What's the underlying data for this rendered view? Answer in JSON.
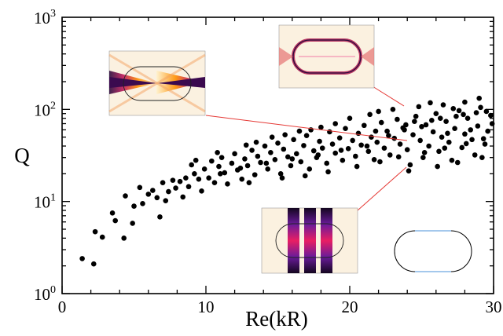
{
  "chart_data": {
    "type": "scatter",
    "title": "",
    "xlabel": "Re(kR)",
    "ylabel": "Q",
    "xlim": [
      0,
      30
    ],
    "ylim": [
      1,
      1000
    ],
    "yscale": "log",
    "grid": false,
    "legend": "none",
    "x_ticks": [
      "0",
      "10",
      "20",
      "30"
    ],
    "y_ticks": [
      {
        "base": "10",
        "exp": "0"
      },
      {
        "base": "10",
        "exp": "1"
      },
      {
        "base": "10",
        "exp": "2"
      },
      {
        "base": "10",
        "exp": "3"
      }
    ],
    "marker_color": "#000000",
    "annotation_color": "#e53935",
    "insets": [
      {
        "name": "inset-mode-bowtie",
        "points_to": [
          24.2,
          48
        ]
      },
      {
        "name": "inset-mode-whispering-gallery",
        "points_to": [
          24.2,
          97
        ]
      },
      {
        "name": "inset-mode-bouncing-ball",
        "points_to": [
          24.2,
          25
        ]
      },
      {
        "name": "inset-stadium-shape"
      }
    ],
    "points": [
      [
        1.4,
        2.4
      ],
      [
        2.2,
        2.1
      ],
      [
        2.3,
        4.7
      ],
      [
        2.8,
        4.1
      ],
      [
        3.5,
        7.5
      ],
      [
        3.7,
        6.2
      ],
      [
        4.3,
        4.0
      ],
      [
        4.4,
        11.5
      ],
      [
        4.9,
        5.8
      ],
      [
        5.0,
        8.9
      ],
      [
        5.4,
        14.2
      ],
      [
        5.6,
        9.5
      ],
      [
        6.0,
        12.0
      ],
      [
        6.3,
        13.2
      ],
      [
        6.6,
        11.0
      ],
      [
        6.8,
        6.8
      ],
      [
        7.0,
        16.0
      ],
      [
        7.2,
        10.2
      ],
      [
        7.4,
        12.8
      ],
      [
        7.7,
        17.0
      ],
      [
        7.9,
        14.0
      ],
      [
        8.2,
        16.5
      ],
      [
        8.4,
        11.2
      ],
      [
        8.6,
        18.0
      ],
      [
        8.8,
        14.5
      ],
      [
        9.0,
        25.0
      ],
      [
        9.2,
        20.0
      ],
      [
        9.5,
        17.5
      ],
      [
        9.7,
        13.0
      ],
      [
        9.9,
        22.5
      ],
      [
        10.2,
        18.0
      ],
      [
        10.4,
        27.5
      ],
      [
        10.6,
        16.0
      ],
      [
        10.9,
        24.0
      ],
      [
        11.1,
        30.0
      ],
      [
        11.3,
        20.5
      ],
      [
        11.5,
        15.5
      ],
      [
        11.8,
        26.0
      ],
      [
        12.0,
        33.0
      ],
      [
        12.2,
        22.0
      ],
      [
        12.5,
        17.5
      ],
      [
        12.7,
        29.0
      ],
      [
        12.9,
        24.5
      ],
      [
        13.2,
        36.0
      ],
      [
        13.4,
        19.5
      ],
      [
        13.6,
        31.0
      ],
      [
        13.8,
        26.5
      ],
      [
        14.1,
        40.0
      ],
      [
        14.3,
        22.5
      ],
      [
        14.5,
        34.0
      ],
      [
        14.8,
        28.5
      ],
      [
        15.0,
        43.0
      ],
      [
        15.2,
        20.0
      ],
      [
        15.4,
        37.0
      ],
      [
        15.7,
        30.5
      ],
      [
        15.9,
        24.5
      ],
      [
        16.1,
        47.0
      ],
      [
        16.3,
        33.0
      ],
      [
        16.6,
        27.0
      ],
      [
        16.8,
        40.5
      ],
      [
        17.0,
        52.0
      ],
      [
        17.2,
        22.5
      ],
      [
        17.5,
        35.5
      ],
      [
        17.7,
        30.0
      ],
      [
        17.9,
        45.0
      ],
      [
        18.1,
        38.0
      ],
      [
        18.4,
        26.0
      ],
      [
        18.6,
        57.0
      ],
      [
        18.8,
        42.0
      ],
      [
        19.0,
        33.5
      ],
      [
        19.3,
        49.0
      ],
      [
        19.5,
        28.0
      ],
      [
        19.7,
        62.0
      ],
      [
        19.9,
        37.5
      ],
      [
        20.2,
        46.0
      ],
      [
        20.4,
        31.0
      ],
      [
        20.6,
        55.0
      ],
      [
        20.8,
        41.0
      ],
      [
        21.0,
        67.0
      ],
      [
        21.3,
        35.0
      ],
      [
        21.5,
        50.0
      ],
      [
        21.7,
        28.5
      ],
      [
        21.9,
        44.0
      ],
      [
        22.2,
        72.0
      ],
      [
        22.4,
        38.0
      ],
      [
        22.6,
        58.0
      ],
      [
        22.8,
        32.0
      ],
      [
        23.1,
        48.5
      ],
      [
        23.3,
        78.0
      ],
      [
        23.5,
        42.0
      ],
      [
        23.7,
        63.0
      ],
      [
        24.0,
        36.5
      ],
      [
        24.2,
        25.0
      ],
      [
        24.4,
        53.0
      ],
      [
        24.6,
        84.0
      ],
      [
        24.9,
        46.0
      ],
      [
        25.1,
        30.0
      ],
      [
        25.3,
        68.0
      ],
      [
        25.5,
        40.0
      ],
      [
        25.8,
        57.0
      ],
      [
        26.0,
        90.0
      ],
      [
        26.2,
        35.0
      ],
      [
        26.4,
        50.0
      ],
      [
        26.7,
        74.0
      ],
      [
        26.9,
        44.0
      ],
      [
        27.1,
        28.0
      ],
      [
        27.3,
        62.0
      ],
      [
        27.6,
        97.0
      ],
      [
        27.8,
        38.5
      ],
      [
        28.0,
        54.0
      ],
      [
        28.2,
        80.0
      ],
      [
        28.5,
        47.0
      ],
      [
        28.7,
        32.0
      ],
      [
        28.9,
        66.0
      ],
      [
        29.1,
        105.0
      ],
      [
        29.4,
        42.0
      ],
      [
        29.6,
        58.0
      ],
      [
        29.8,
        86.0
      ],
      [
        22.0,
        95.0
      ],
      [
        23.0,
        100.0
      ],
      [
        24.8,
        107.0
      ],
      [
        26.5,
        112.0
      ],
      [
        28.0,
        120.0
      ],
      [
        29.0,
        132.0
      ],
      [
        25.6,
        118.0
      ],
      [
        27.2,
        102.0
      ],
      [
        18.0,
        64.0
      ],
      [
        16.5,
        58.0
      ],
      [
        14.6,
        50.0
      ],
      [
        12.8,
        41.0
      ],
      [
        10.8,
        34.0
      ],
      [
        9.3,
        28.0
      ],
      [
        20.0,
        80.0
      ],
      [
        21.4,
        88.0
      ],
      [
        19.0,
        70.0
      ],
      [
        17.3,
        60.0
      ],
      [
        15.5,
        53.0
      ],
      [
        13.5,
        44.0
      ],
      [
        23.8,
        60.0
      ],
      [
        25.0,
        65.0
      ],
      [
        26.8,
        55.0
      ],
      [
        28.4,
        60.0
      ],
      [
        29.9,
        70.0
      ],
      [
        22.7,
        52.0
      ],
      [
        24.5,
        74.0
      ],
      [
        26.3,
        80.0
      ],
      [
        27.9,
        88.0
      ],
      [
        29.5,
        95.0
      ],
      [
        21.2,
        40.0
      ],
      [
        19.4,
        36.0
      ],
      [
        17.8,
        32.0
      ],
      [
        16.0,
        29.0
      ],
      [
        14.2,
        26.0
      ],
      [
        12.4,
        23.0
      ],
      [
        11.0,
        20.0
      ],
      [
        23.4,
        30.5
      ],
      [
        25.2,
        34.0
      ],
      [
        26.6,
        38.0
      ],
      [
        28.1,
        42.5
      ],
      [
        29.3,
        48.0
      ],
      [
        20.5,
        24.0
      ],
      [
        22.1,
        27.0
      ],
      [
        24.1,
        21.5
      ],
      [
        26.1,
        24.0
      ],
      [
        27.5,
        26.5
      ],
      [
        29.2,
        30.0
      ],
      [
        18.5,
        21.0
      ],
      [
        16.9,
        19.0
      ],
      [
        15.3,
        18.0
      ],
      [
        13.0,
        16.0
      ],
      [
        21.8,
        58.0
      ],
      [
        23.9,
        68.0
      ],
      [
        25.7,
        76.0
      ],
      [
        27.4,
        84.0
      ],
      [
        28.8,
        92.0
      ]
    ]
  }
}
